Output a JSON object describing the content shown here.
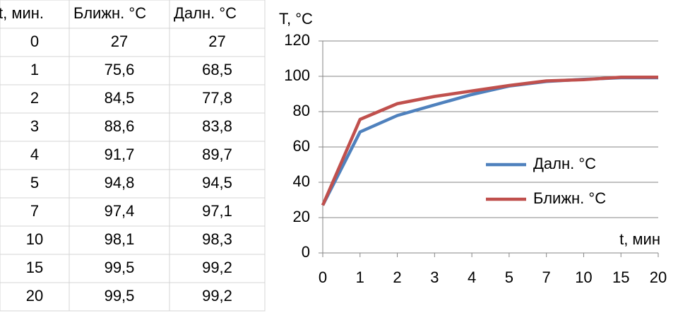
{
  "table": {
    "header": [
      "t, мин.",
      "Ближн. °C",
      "Далн. °C"
    ],
    "rows": [
      [
        "0",
        "27",
        "27"
      ],
      [
        "1",
        "75,6",
        "68,5"
      ],
      [
        "2",
        "84,5",
        "77,8"
      ],
      [
        "3",
        "88,6",
        "83,8"
      ],
      [
        "4",
        "91,7",
        "89,7"
      ],
      [
        "5",
        "94,8",
        "94,5"
      ],
      [
        "7",
        "97,4",
        "97,1"
      ],
      [
        "10",
        "98,1",
        "98,3"
      ],
      [
        "15",
        "99,5",
        "99,2"
      ],
      [
        "20",
        "99,5",
        "99,2"
      ]
    ]
  },
  "chart_data": {
    "type": "line",
    "y_label": "T, °C",
    "x_label": "t, мин",
    "categories": [
      "0",
      "1",
      "2",
      "3",
      "4",
      "5",
      "7",
      "10",
      "15",
      "20"
    ],
    "series": [
      {
        "name": "Далн. °C",
        "color": "#4f81bd",
        "values": [
          27,
          68.5,
          77.8,
          83.8,
          89.7,
          94.5,
          97.1,
          98.3,
          99.2,
          99.2
        ]
      },
      {
        "name": "Ближн. °C",
        "color": "#c0504d",
        "values": [
          27,
          75.6,
          84.5,
          88.6,
          91.7,
          94.8,
          97.4,
          98.1,
          99.5,
          99.5
        ]
      }
    ],
    "ylim": [
      0,
      120
    ],
    "yticks": [
      0,
      20,
      40,
      60,
      80,
      100,
      120
    ],
    "grid": true,
    "legend": "right"
  }
}
